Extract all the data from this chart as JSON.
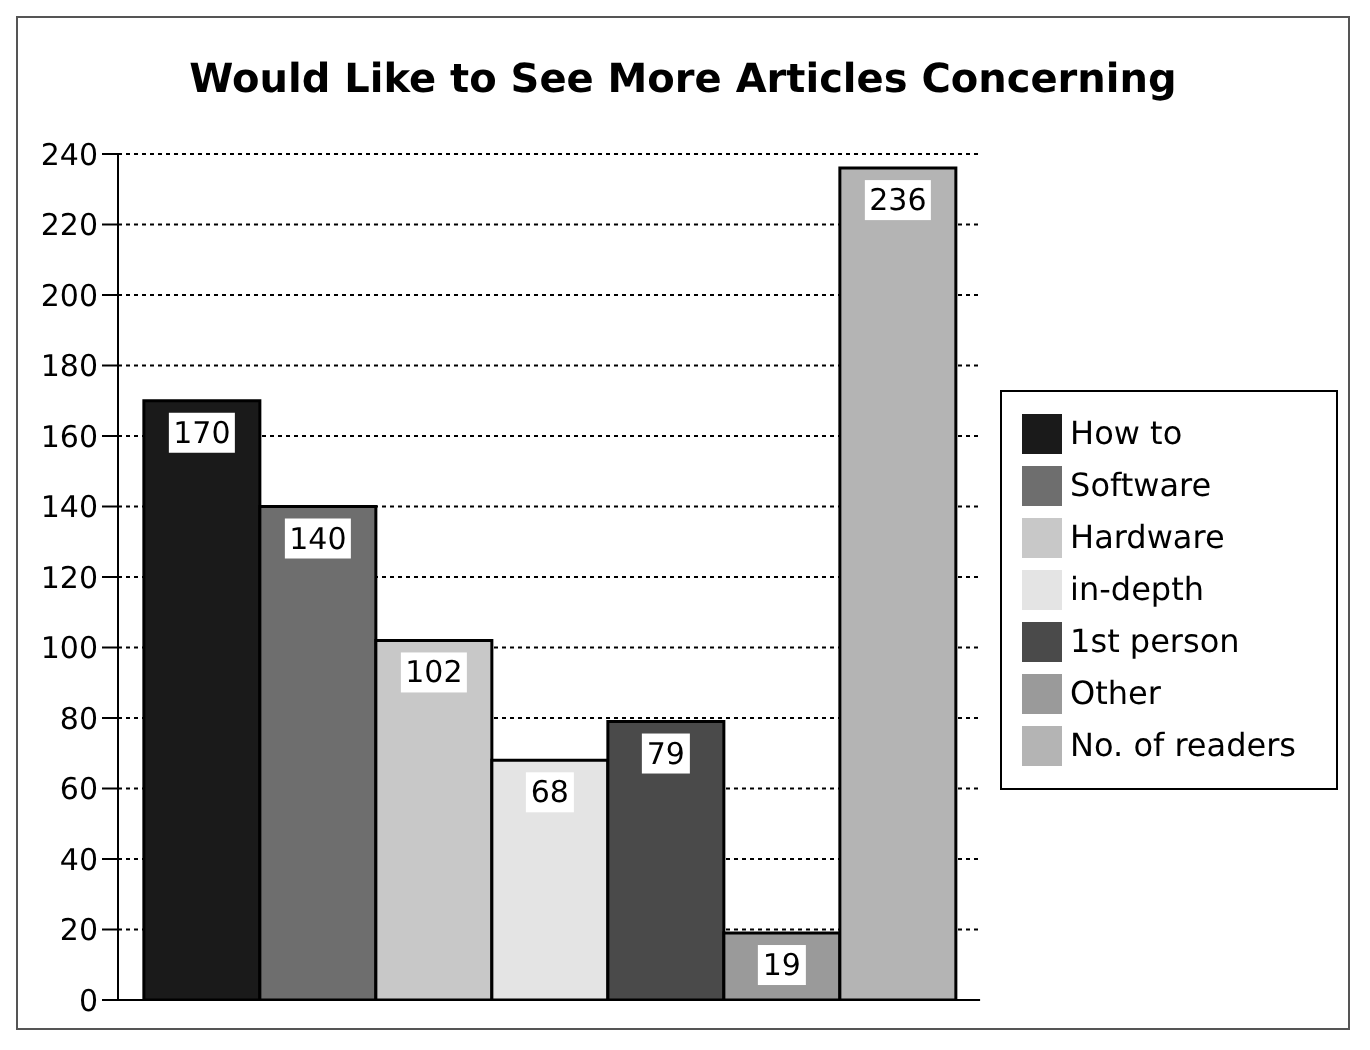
{
  "chart_data": {
    "type": "bar",
    "title": "Would Like to See More Articles Concerning",
    "categories": [
      null
    ],
    "series": [
      {
        "name": "How to",
        "color": "#1a1a1a",
        "values": [
          170
        ]
      },
      {
        "name": "Software",
        "color": "#6e6e6e",
        "values": [
          140
        ]
      },
      {
        "name": "Hardware",
        "color": "#c8c8c8",
        "values": [
          102
        ]
      },
      {
        "name": "in-depth",
        "color": "#e4e4e4",
        "values": [
          68
        ]
      },
      {
        "name": "1st person",
        "color": "#4a4a4a",
        "values": [
          79
        ]
      },
      {
        "name": "Other",
        "color": "#9a9a9a",
        "values": [
          19
        ]
      },
      {
        "name": "No. of readers",
        "color": "#b4b4b4",
        "values": [
          236
        ]
      }
    ],
    "ylim": [
      0,
      240
    ],
    "yticks": [
      0,
      20,
      40,
      60,
      80,
      100,
      120,
      140,
      160,
      180,
      200,
      220,
      240
    ],
    "grid": "y",
    "legend": "right",
    "data_labels": true
  }
}
